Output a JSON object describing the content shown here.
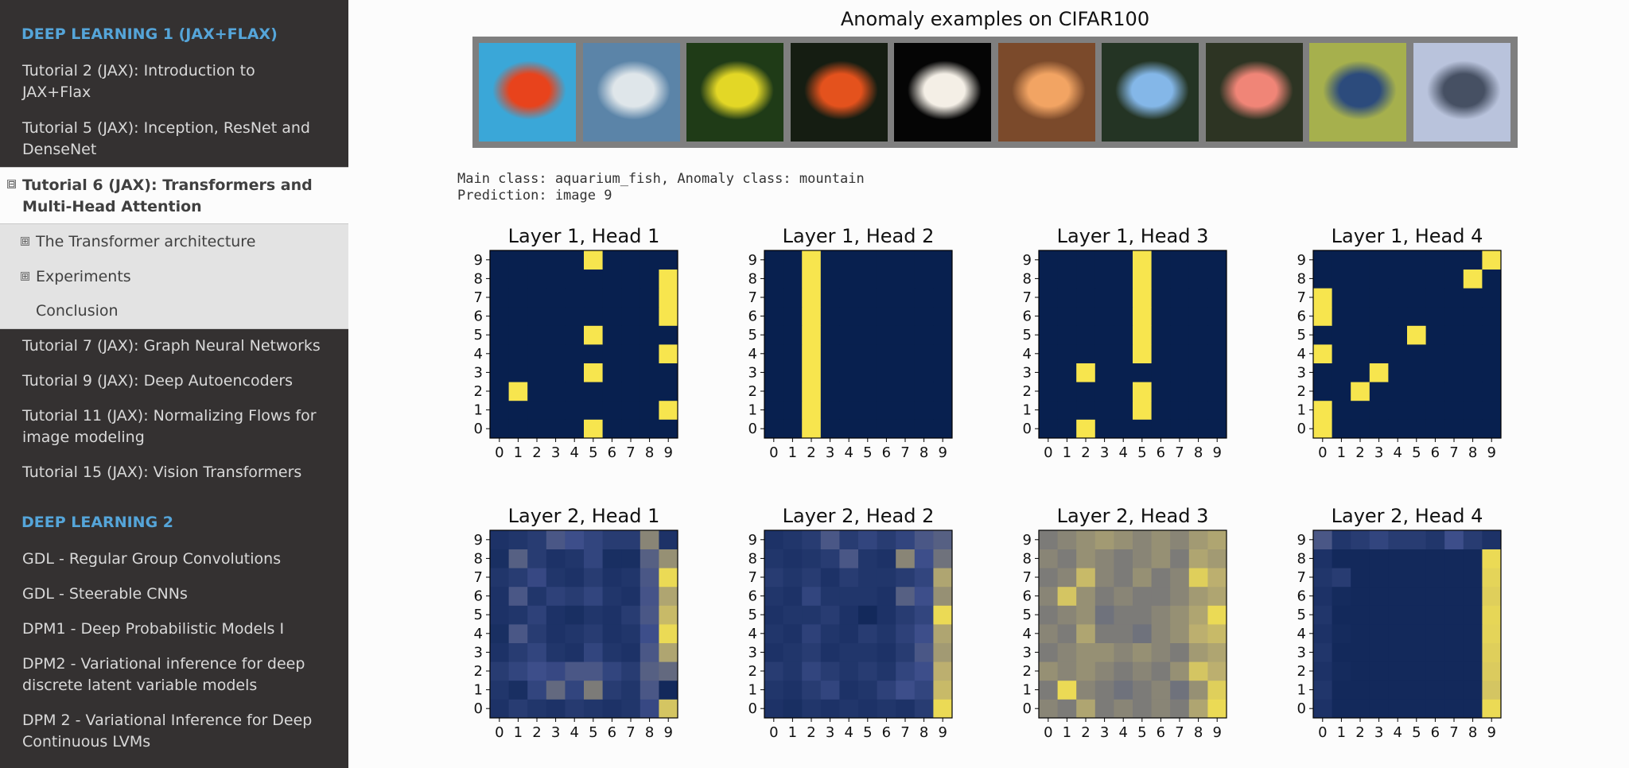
{
  "sidebar": {
    "caption_1": "DEEP LEARNING 1 (JAX+FLAX)",
    "items_before": [
      "Tutorial 2 (JAX): Introduction to JAX+Flax",
      "Tutorial 5 (JAX): Inception, ResNet and DenseNet"
    ],
    "current_toggle": "⊟",
    "current_item": "Tutorial 6 (JAX): Transformers and Multi-Head Attention",
    "sub_items": [
      {
        "toggle": "⊞",
        "label": "The Transformer architecture"
      },
      {
        "toggle": "⊞",
        "label": "Experiments"
      },
      {
        "toggle": "",
        "label": "Conclusion"
      }
    ],
    "items_after": [
      "Tutorial 7 (JAX): Graph Neural Networks",
      "Tutorial 9 (JAX): Deep Autoencoders",
      "Tutorial 11 (JAX): Normalizing Flows for image modeling",
      "Tutorial 15 (JAX): Vision Transformers"
    ],
    "caption_2": "DEEP LEARNING 2",
    "items_dl2": [
      "GDL - Regular Group Convolutions",
      "GDL - Steerable CNNs",
      "DPM1 - Deep Probabilistic Models I",
      "DPM2 - Variational inference for deep discrete latent variable models",
      "DPM 2 - Variational Inference for Deep Continuous LVMs"
    ]
  },
  "figure": {
    "title": "Anomaly examples on CIFAR100",
    "images": [
      {
        "name": "goldfish-image-icon",
        "bg": "#3aa7d8",
        "fg": "#e8431c"
      },
      {
        "name": "zebra-cichlid-image-icon",
        "bg": "#5b84a8",
        "fg": "#dfe6ea"
      },
      {
        "name": "yellow-fish-image-icon",
        "bg": "#1f3b17",
        "fg": "#e3d726"
      },
      {
        "name": "orange-fish-image-icon",
        "bg": "#151d12",
        "fg": "#e4521d"
      },
      {
        "name": "white-goldfish-image-icon",
        "bg": "#050505",
        "fg": "#f4efe6"
      },
      {
        "name": "fancy-goldfish-image-icon",
        "bg": "#7b4a2b",
        "fg": "#f2a463"
      },
      {
        "name": "blue-cichlid-image-icon",
        "bg": "#243424",
        "fg": "#84b7e8"
      },
      {
        "name": "pink-fish-image-icon",
        "bg": "#2d3423",
        "fg": "#f08577"
      },
      {
        "name": "striped-cichlid-image-icon",
        "bg": "#a6b04d",
        "fg": "#2c4b7c"
      },
      {
        "name": "mountain-image-icon",
        "bg": "#b9c3dc",
        "fg": "#465063"
      }
    ]
  },
  "output": {
    "line1": "Main class: aquarium_fish, Anomaly class: mountain",
    "line2": "Prediction: image 9"
  },
  "colors": {
    "low": "#08204f",
    "high": "#f7e54e"
  },
  "chart_data": [
    {
      "type": "heatmap",
      "title": "Layer 1, Head 1",
      "x": [
        0,
        1,
        2,
        3,
        4,
        5,
        6,
        7,
        8,
        9
      ],
      "y": [
        0,
        1,
        2,
        3,
        4,
        5,
        6,
        7,
        8,
        9
      ],
      "cells": [
        [
          0,
          0,
          0,
          0,
          0,
          1,
          0,
          0,
          0,
          0
        ],
        [
          0,
          0,
          0,
          0,
          0,
          0,
          0,
          0,
          0,
          1
        ],
        [
          0,
          1,
          0,
          0,
          0,
          0,
          0,
          0,
          0,
          0
        ],
        [
          0,
          0,
          0,
          0,
          0,
          1,
          0,
          0,
          0,
          0
        ],
        [
          0,
          0,
          0,
          0,
          0,
          0,
          0,
          0,
          0,
          1
        ],
        [
          0,
          0,
          0,
          0,
          0,
          1,
          0,
          0,
          0,
          0
        ],
        [
          0,
          0,
          0,
          0,
          0,
          0,
          0,
          0,
          0,
          1
        ],
        [
          0,
          0,
          0,
          0,
          0,
          0,
          0,
          0,
          0,
          1
        ],
        [
          0,
          0,
          0,
          0,
          0,
          0,
          0,
          0,
          0,
          1
        ],
        [
          0,
          0,
          0,
          0,
          0,
          1,
          0,
          0,
          0,
          0
        ]
      ]
    },
    {
      "type": "heatmap",
      "title": "Layer 1, Head 2",
      "x": [
        0,
        1,
        2,
        3,
        4,
        5,
        6,
        7,
        8,
        9
      ],
      "y": [
        0,
        1,
        2,
        3,
        4,
        5,
        6,
        7,
        8,
        9
      ],
      "cells": [
        [
          0,
          0,
          1,
          0,
          0,
          0,
          0,
          0,
          0,
          0
        ],
        [
          0,
          0,
          1,
          0,
          0,
          0,
          0,
          0,
          0,
          0
        ],
        [
          0,
          0,
          1,
          0,
          0,
          0,
          0,
          0,
          0,
          0
        ],
        [
          0,
          0,
          1,
          0,
          0,
          0,
          0,
          0,
          0,
          0
        ],
        [
          0,
          0,
          1,
          0,
          0,
          0,
          0,
          0,
          0,
          0
        ],
        [
          0,
          0,
          1,
          0,
          0,
          0,
          0,
          0,
          0,
          0
        ],
        [
          0,
          0,
          1,
          0,
          0,
          0,
          0,
          0,
          0,
          0
        ],
        [
          0,
          0,
          1,
          0,
          0,
          0,
          0,
          0,
          0,
          0
        ],
        [
          0,
          0,
          1,
          0,
          0,
          0,
          0,
          0,
          0,
          0
        ],
        [
          0,
          0,
          1,
          0,
          0,
          0,
          0,
          0,
          0,
          0
        ]
      ]
    },
    {
      "type": "heatmap",
      "title": "Layer 1, Head 3",
      "x": [
        0,
        1,
        2,
        3,
        4,
        5,
        6,
        7,
        8,
        9
      ],
      "y": [
        0,
        1,
        2,
        3,
        4,
        5,
        6,
        7,
        8,
        9
      ],
      "cells": [
        [
          0,
          0,
          1,
          0,
          0,
          0,
          0,
          0,
          0,
          0
        ],
        [
          0,
          0,
          0,
          0,
          0,
          1,
          0,
          0,
          0,
          0
        ],
        [
          0,
          0,
          0,
          0,
          0,
          1,
          0,
          0,
          0,
          0
        ],
        [
          0,
          0,
          1,
          0,
          0,
          0,
          0,
          0,
          0,
          0
        ],
        [
          0,
          0,
          0,
          0,
          0,
          1,
          0,
          0,
          0,
          0
        ],
        [
          0,
          0,
          0,
          0,
          0,
          1,
          0,
          0,
          0,
          0
        ],
        [
          0,
          0,
          0,
          0,
          0,
          1,
          0,
          0,
          0,
          0
        ],
        [
          0,
          0,
          0,
          0,
          0,
          1,
          0,
          0,
          0,
          0
        ],
        [
          0,
          0,
          0,
          0,
          0,
          1,
          0,
          0,
          0,
          0
        ],
        [
          0,
          0,
          0,
          0,
          0,
          1,
          0,
          0,
          0,
          0
        ]
      ]
    },
    {
      "type": "heatmap",
      "title": "Layer 1, Head 4",
      "x": [
        0,
        1,
        2,
        3,
        4,
        5,
        6,
        7,
        8,
        9
      ],
      "y": [
        0,
        1,
        2,
        3,
        4,
        5,
        6,
        7,
        8,
        9
      ],
      "cells": [
        [
          1,
          0,
          0,
          0,
          0,
          0,
          0,
          0,
          0,
          0
        ],
        [
          1,
          0,
          0,
          0,
          0,
          0,
          0,
          0,
          0,
          0
        ],
        [
          0,
          0,
          1,
          0,
          0,
          0,
          0,
          0,
          0,
          0
        ],
        [
          0,
          0,
          0,
          1,
          0,
          0,
          0,
          0,
          0,
          0
        ],
        [
          1,
          0,
          0,
          0,
          0,
          0,
          0,
          0,
          0,
          0
        ],
        [
          0,
          0,
          0,
          0,
          0,
          1,
          0,
          0,
          0,
          0
        ],
        [
          1,
          0,
          0,
          0,
          0,
          0,
          0,
          0,
          0,
          0
        ],
        [
          1,
          0,
          0,
          0,
          0,
          0,
          0,
          0,
          0,
          0
        ],
        [
          0,
          0,
          0,
          0,
          0,
          0,
          0,
          0,
          1,
          0
        ],
        [
          0,
          0,
          0,
          0,
          0,
          0,
          0,
          0,
          0,
          1
        ]
      ]
    },
    {
      "type": "heatmap",
      "title": "Layer 2, Head 1",
      "x": [
        0,
        1,
        2,
        3,
        4,
        5,
        6,
        7,
        8,
        9
      ],
      "y": [
        0,
        1,
        2,
        3,
        4,
        5,
        6,
        7,
        8,
        9
      ],
      "cells": [
        [
          0.1,
          0.15,
          0.12,
          0.1,
          0.14,
          0.12,
          0.1,
          0.12,
          0.22,
          0.85
        ],
        [
          0.12,
          0.08,
          0.2,
          0.4,
          0.2,
          0.5,
          0.15,
          0.12,
          0.3,
          0.05
        ],
        [
          0.15,
          0.2,
          0.25,
          0.22,
          0.3,
          0.3,
          0.2,
          0.15,
          0.35,
          0.4
        ],
        [
          0.1,
          0.15,
          0.2,
          0.12,
          0.1,
          0.2,
          0.12,
          0.1,
          0.3,
          0.7
        ],
        [
          0.08,
          0.3,
          0.15,
          0.1,
          0.12,
          0.15,
          0.1,
          0.12,
          0.25,
          0.95
        ],
        [
          0.1,
          0.12,
          0.18,
          0.1,
          0.08,
          0.12,
          0.1,
          0.15,
          0.3,
          0.8
        ],
        [
          0.1,
          0.3,
          0.12,
          0.18,
          0.15,
          0.2,
          0.12,
          0.1,
          0.28,
          0.7
        ],
        [
          0.12,
          0.15,
          0.22,
          0.12,
          0.1,
          0.15,
          0.1,
          0.12,
          0.3,
          0.95
        ],
        [
          0.08,
          0.35,
          0.15,
          0.1,
          0.12,
          0.2,
          0.08,
          0.08,
          0.35,
          0.6
        ],
        [
          0.1,
          0.12,
          0.15,
          0.3,
          0.25,
          0.2,
          0.15,
          0.15,
          0.55,
          0.1
        ]
      ]
    },
    {
      "type": "heatmap",
      "title": "Layer 2, Head 2",
      "x": [
        0,
        1,
        2,
        3,
        4,
        5,
        6,
        7,
        8,
        9
      ],
      "y": [
        0,
        1,
        2,
        3,
        4,
        5,
        6,
        7,
        8,
        9
      ],
      "cells": [
        [
          0.1,
          0.08,
          0.12,
          0.1,
          0.12,
          0.1,
          0.12,
          0.1,
          0.15,
          0.95
        ],
        [
          0.12,
          0.1,
          0.15,
          0.2,
          0.1,
          0.12,
          0.18,
          0.25,
          0.2,
          0.8
        ],
        [
          0.15,
          0.12,
          0.2,
          0.15,
          0.12,
          0.15,
          0.12,
          0.2,
          0.25,
          0.75
        ],
        [
          0.1,
          0.12,
          0.15,
          0.1,
          0.12,
          0.12,
          0.1,
          0.15,
          0.3,
          0.65
        ],
        [
          0.12,
          0.1,
          0.18,
          0.12,
          0.1,
          0.15,
          0.12,
          0.18,
          0.25,
          0.7
        ],
        [
          0.1,
          0.12,
          0.12,
          0.15,
          0.1,
          0.05,
          0.1,
          0.15,
          0.2,
          0.95
        ],
        [
          0.12,
          0.1,
          0.2,
          0.12,
          0.12,
          0.12,
          0.1,
          0.35,
          0.25,
          0.6
        ],
        [
          0.15,
          0.12,
          0.15,
          0.1,
          0.15,
          0.12,
          0.12,
          0.15,
          0.2,
          0.7
        ],
        [
          0.12,
          0.1,
          0.12,
          0.15,
          0.3,
          0.12,
          0.1,
          0.55,
          0.25,
          0.45
        ],
        [
          0.1,
          0.12,
          0.15,
          0.3,
          0.15,
          0.2,
          0.15,
          0.2,
          0.3,
          0.35
        ]
      ]
    },
    {
      "type": "heatmap",
      "title": "Layer 2, Head 3",
      "x": [
        0,
        1,
        2,
        3,
        4,
        5,
        6,
        7,
        8,
        9
      ],
      "y": [
        0,
        1,
        2,
        3,
        4,
        5,
        6,
        7,
        8,
        9
      ],
      "cells": [
        [
          0.55,
          0.5,
          0.7,
          0.5,
          0.55,
          0.5,
          0.55,
          0.5,
          0.7,
          0.95
        ],
        [
          0.5,
          0.95,
          0.55,
          0.5,
          0.45,
          0.5,
          0.55,
          0.45,
          0.6,
          0.9
        ],
        [
          0.6,
          0.55,
          0.6,
          0.55,
          0.5,
          0.55,
          0.5,
          0.6,
          0.85,
          0.75
        ],
        [
          0.5,
          0.55,
          0.6,
          0.6,
          0.55,
          0.6,
          0.55,
          0.5,
          0.65,
          0.7
        ],
        [
          0.55,
          0.5,
          0.7,
          0.5,
          0.5,
          0.45,
          0.55,
          0.6,
          0.75,
          0.8
        ],
        [
          0.5,
          0.55,
          0.6,
          0.45,
          0.5,
          0.5,
          0.55,
          0.6,
          0.7,
          0.95
        ],
        [
          0.55,
          0.85,
          0.6,
          0.5,
          0.55,
          0.5,
          0.5,
          0.55,
          0.65,
          0.7
        ],
        [
          0.5,
          0.55,
          0.8,
          0.55,
          0.5,
          0.6,
          0.5,
          0.55,
          0.9,
          0.75
        ],
        [
          0.55,
          0.5,
          0.6,
          0.55,
          0.5,
          0.55,
          0.6,
          0.5,
          0.7,
          0.65
        ],
        [
          0.5,
          0.55,
          0.6,
          0.65,
          0.6,
          0.55,
          0.6,
          0.55,
          0.65,
          0.7
        ]
      ]
    },
    {
      "type": "heatmap",
      "title": "Layer 2, Head 4",
      "x": [
        0,
        1,
        2,
        3,
        4,
        5,
        6,
        7,
        8,
        9
      ],
      "y": [
        0,
        1,
        2,
        3,
        4,
        5,
        6,
        7,
        8,
        9
      ],
      "cells": [
        [
          0.1,
          0.05,
          0.05,
          0.05,
          0.05,
          0.05,
          0.05,
          0.05,
          0.05,
          0.95
        ],
        [
          0.12,
          0.05,
          0.05,
          0.05,
          0.05,
          0.05,
          0.05,
          0.05,
          0.05,
          0.85
        ],
        [
          0.1,
          0.06,
          0.05,
          0.05,
          0.05,
          0.05,
          0.05,
          0.05,
          0.05,
          0.88
        ],
        [
          0.12,
          0.05,
          0.05,
          0.05,
          0.05,
          0.05,
          0.05,
          0.05,
          0.05,
          0.9
        ],
        [
          0.1,
          0.06,
          0.05,
          0.05,
          0.05,
          0.05,
          0.05,
          0.05,
          0.05,
          0.92
        ],
        [
          0.12,
          0.05,
          0.05,
          0.05,
          0.05,
          0.05,
          0.05,
          0.05,
          0.05,
          0.93
        ],
        [
          0.1,
          0.06,
          0.05,
          0.05,
          0.05,
          0.05,
          0.05,
          0.05,
          0.05,
          0.9
        ],
        [
          0.12,
          0.15,
          0.05,
          0.05,
          0.05,
          0.05,
          0.05,
          0.05,
          0.05,
          0.92
        ],
        [
          0.1,
          0.05,
          0.05,
          0.05,
          0.05,
          0.05,
          0.05,
          0.05,
          0.05,
          0.95
        ],
        [
          0.3,
          0.12,
          0.15,
          0.2,
          0.15,
          0.15,
          0.12,
          0.25,
          0.15,
          0.1
        ]
      ]
    }
  ]
}
